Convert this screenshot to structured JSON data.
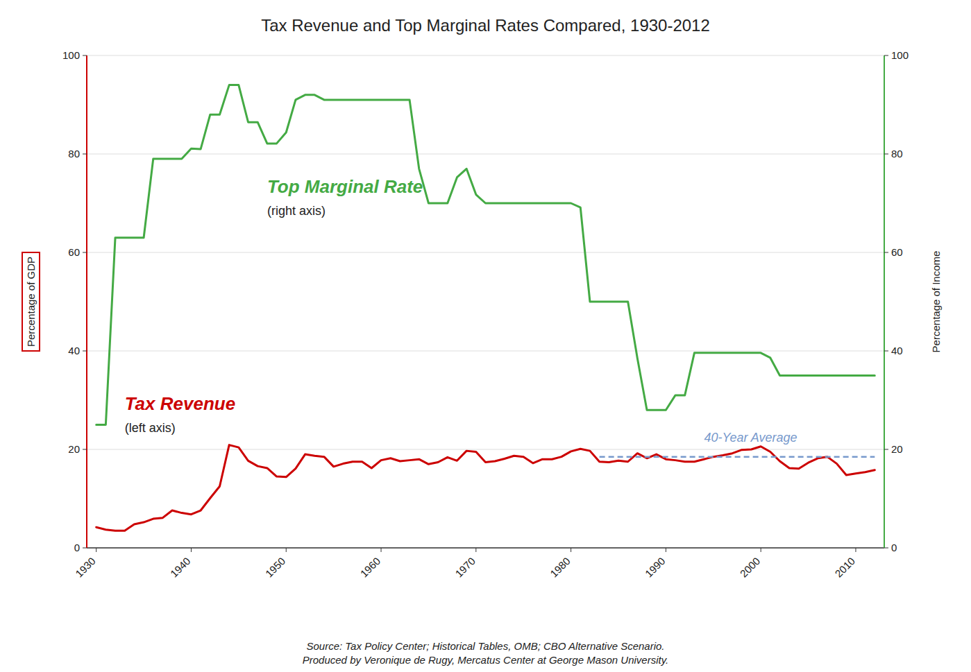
{
  "chart_data": {
    "type": "line",
    "title": "Tax Revenue and Top Marginal Rates Compared, 1930-2012",
    "ylabel": "Percentage of GDP",
    "y2label": "Percentage of Income",
    "source": "Source: Tax Policy Center; Historical Tables, OMB; CBO Alternative Scenario.\nProduced by Veronique de Rugy, Mercatus Center at George Mason University.",
    "x": [
      1930,
      1931,
      1932,
      1933,
      1934,
      1935,
      1936,
      1937,
      1938,
      1939,
      1940,
      1941,
      1942,
      1943,
      1944,
      1945,
      1946,
      1947,
      1948,
      1949,
      1950,
      1951,
      1952,
      1953,
      1954,
      1955,
      1956,
      1957,
      1958,
      1959,
      1960,
      1961,
      1962,
      1963,
      1964,
      1965,
      1966,
      1967,
      1968,
      1969,
      1970,
      1971,
      1972,
      1973,
      1974,
      1975,
      1976,
      1977,
      1978,
      1979,
      1980,
      1981,
      1982,
      1983,
      1984,
      1985,
      1986,
      1987,
      1988,
      1989,
      1990,
      1991,
      1992,
      1993,
      1994,
      1995,
      1996,
      1997,
      1998,
      1999,
      2000,
      2001,
      2002,
      2003,
      2004,
      2005,
      2006,
      2007,
      2008,
      2009,
      2010,
      2011,
      2012
    ],
    "xlim": [
      1929,
      2013
    ],
    "xticks": [
      1930,
      1940,
      1950,
      1960,
      1970,
      1980,
      1990,
      2000,
      2010
    ],
    "ylim": [
      0,
      100
    ],
    "yticks": [
      0,
      20,
      40,
      60,
      80,
      100
    ],
    "y2lim": [
      0,
      100
    ],
    "y2ticks": [
      0,
      20,
      40,
      60,
      80,
      100
    ],
    "grid": true,
    "series": [
      {
        "name": "Tax Revenue",
        "color": "#cc0000",
        "values": [
          4.2,
          3.7,
          3.5,
          3.5,
          4.8,
          5.2,
          5.9,
          6.1,
          7.6,
          7.1,
          6.8,
          7.6,
          10.1,
          12.5,
          20.9,
          20.4,
          17.7,
          16.6,
          16.2,
          14.5,
          14.4,
          16.1,
          19.0,
          18.7,
          18.5,
          16.5,
          17.1,
          17.5,
          17.5,
          16.2,
          17.8,
          18.2,
          17.6,
          17.8,
          18.0,
          17.0,
          17.4,
          18.4,
          17.7,
          19.7,
          19.5,
          17.4,
          17.6,
          18.1,
          18.7,
          18.5,
          17.2,
          18.0,
          18.0,
          18.5,
          19.6,
          20.1,
          19.7,
          17.5,
          17.4,
          17.7,
          17.5,
          19.2,
          18.2,
          19.0,
          18.0,
          17.8,
          17.5,
          17.5,
          18.0,
          18.5,
          18.8,
          19.2,
          19.9,
          20.0,
          20.6,
          19.5,
          17.6,
          16.2,
          16.1,
          17.3,
          18.2,
          18.5,
          17.1,
          14.8,
          15.1,
          15.4,
          15.8
        ]
      },
      {
        "name": "Top Marginal Rate",
        "color": "#44aa44",
        "axis": "y2",
        "values": [
          25,
          25,
          63,
          63,
          63,
          63,
          79,
          79,
          79,
          79,
          81.1,
          81,
          88,
          88,
          94,
          94,
          86.45,
          86.45,
          82.13,
          82.13,
          84.36,
          91,
          92,
          92,
          91,
          91,
          91,
          91,
          91,
          91,
          91,
          91,
          91,
          91,
          77,
          70,
          70,
          70,
          75.25,
          77,
          71.75,
          70,
          70,
          70,
          70,
          70,
          70,
          70,
          70,
          70,
          70,
          69.13,
          50,
          50,
          50,
          50,
          50,
          38.5,
          28,
          28,
          28,
          31,
          31,
          39.6,
          39.6,
          39.6,
          39.6,
          39.6,
          39.6,
          39.6,
          39.6,
          38.6,
          35,
          35,
          35,
          35,
          35,
          35,
          35,
          35,
          35,
          35,
          35
        ]
      },
      {
        "name": "40-Year Average",
        "color": "#7799cc",
        "line_style": "dashed",
        "x": [
          1983,
          2012
        ],
        "values": [
          18.5,
          18.5
        ]
      }
    ],
    "annotations": [
      "(left axis)",
      "(right axis)"
    ]
  }
}
